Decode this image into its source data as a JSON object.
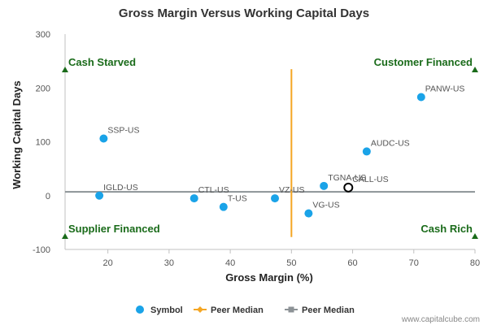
{
  "chart_data": {
    "type": "scatter",
    "title": "Gross Margin Versus Working Capital Days",
    "xlabel": "Gross Margin (%)",
    "ylabel": "Working Capital Days",
    "xlim": [
      13,
      80
    ],
    "ylim": [
      -100,
      300
    ],
    "x_ticks": [
      20,
      30,
      40,
      50,
      60,
      70,
      80
    ],
    "y_ticks": [
      -100,
      0,
      100,
      200,
      300
    ],
    "grid": false,
    "colors": {
      "symbol": "#1aa3e8",
      "highlight_stroke": "#000000",
      "peer_median_x": "#f5a623",
      "peer_median_y": "#8c9296",
      "quadrant": "#1a6b1a"
    },
    "points": [
      {
        "label": "PANW-US",
        "x": 71.2,
        "y": 183
      },
      {
        "label": "SSP-US",
        "x": 19.3,
        "y": 106
      },
      {
        "label": "AUDC-US",
        "x": 62.3,
        "y": 82
      },
      {
        "label": "TGNA-US",
        "x": 55.3,
        "y": 18
      },
      {
        "label": "CALL-US",
        "x": 59.3,
        "y": 15,
        "highlight": true
      },
      {
        "label": "IGLD-US",
        "x": 18.6,
        "y": 0
      },
      {
        "label": "CTL-US",
        "x": 34.1,
        "y": -5
      },
      {
        "label": "VZ-US",
        "x": 47.3,
        "y": -5
      },
      {
        "label": "T-US",
        "x": 38.9,
        "y": -21
      },
      {
        "label": "VG-US",
        "x": 52.8,
        "y": -33
      }
    ],
    "peer_median_x": {
      "value": 50,
      "y_range": [
        -77,
        235
      ]
    },
    "peer_median_y": {
      "value": 7
    },
    "quadrant_labels": [
      {
        "text": "Cash Starved",
        "corner": "top-left"
      },
      {
        "text": "Customer Financed",
        "corner": "top-right"
      },
      {
        "text": "Supplier Financed",
        "corner": "bottom-left"
      },
      {
        "text": "Cash Rich",
        "corner": "bottom-right"
      }
    ],
    "legend": {
      "placement": "bottom",
      "items": [
        {
          "label": "Symbol",
          "marker": "circle"
        },
        {
          "label": "Peer Median",
          "marker": "line-diamond"
        },
        {
          "label": "Peer Median",
          "marker": "line-square"
        }
      ]
    }
  },
  "watermark": "www.capitalcube.com"
}
